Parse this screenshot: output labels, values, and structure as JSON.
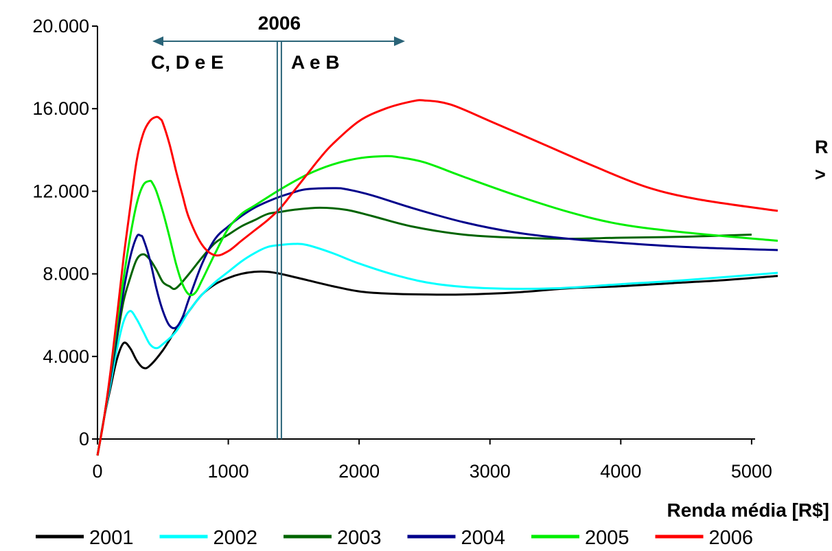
{
  "chart_data": {
    "type": "line",
    "title": "",
    "xlabel": "Renda média [R$]",
    "ylabel": "",
    "xlim": [
      0,
      5200
    ],
    "ylim": [
      0,
      20000
    ],
    "x_ticks": [
      "0",
      "1000",
      "2000",
      "3000",
      "4000",
      "5000"
    ],
    "y_ticks": [
      "0",
      "4.000",
      "8.000",
      "12.000",
      "16.000",
      "20.000"
    ],
    "grid": false,
    "legend_position": "bottom",
    "annotations": {
      "year": "2006",
      "left_label": "C, D e E",
      "right_label": "A e  B",
      "threshold_x": 1390,
      "cut_right_edge_label_1": "R",
      "cut_right_edge_label_2": ">"
    },
    "series": [
      {
        "name": "2001",
        "color": "#000000",
        "x": [
          0,
          50,
          100,
          150,
          200,
          250,
          300,
          350,
          400,
          500,
          600,
          700,
          800,
          900,
          1000,
          1100,
          1200,
          1300,
          1400,
          1600,
          1800,
          2000,
          2200,
          2500,
          2800,
          3200,
          3600,
          4000,
          4400,
          4800,
          5200
        ],
        "y": [
          -800,
          1000,
          2500,
          3900,
          4650,
          4400,
          3800,
          3450,
          3550,
          4300,
          5300,
          6200,
          7000,
          7500,
          7800,
          8000,
          8100,
          8100,
          8000,
          7700,
          7400,
          7150,
          7050,
          7000,
          7000,
          7100,
          7300,
          7400,
          7550,
          7700,
          7900
        ]
      },
      {
        "name": "2002",
        "color": "#00FFFF",
        "x": [
          0,
          50,
          100,
          150,
          200,
          250,
          300,
          350,
          400,
          450,
          500,
          600,
          700,
          800,
          900,
          1000,
          1100,
          1200,
          1300,
          1400,
          1500,
          1600,
          1800,
          2000,
          2300,
          2600,
          3000,
          3500,
          4000,
          4500,
          5200
        ],
        "y": [
          -800,
          1000,
          2700,
          4400,
          5700,
          6200,
          5800,
          5200,
          4600,
          4400,
          4600,
          5200,
          6200,
          7000,
          7600,
          8100,
          8600,
          9000,
          9300,
          9400,
          9450,
          9400,
          9000,
          8500,
          7900,
          7500,
          7300,
          7300,
          7500,
          7700,
          8050
        ]
      },
      {
        "name": "2003",
        "color": "#006400",
        "x": [
          0,
          50,
          100,
          150,
          200,
          250,
          300,
          350,
          400,
          450,
          500,
          550,
          600,
          700,
          800,
          900,
          1000,
          1100,
          1200,
          1300,
          1400,
          1500,
          1700,
          1900,
          2100,
          2400,
          2800,
          3200,
          3600,
          4000,
          4500,
          5000
        ],
        "y": [
          -800,
          1000,
          3000,
          4900,
          6700,
          7800,
          8700,
          8950,
          8700,
          8200,
          7600,
          7400,
          7300,
          8000,
          8800,
          9500,
          9900,
          10300,
          10600,
          10900,
          11000,
          11100,
          11200,
          11100,
          10800,
          10300,
          9900,
          9750,
          9700,
          9750,
          9800,
          9900
        ]
      },
      {
        "name": "2004",
        "color": "#00008B",
        "x": [
          0,
          50,
          100,
          150,
          200,
          250,
          300,
          330,
          350,
          400,
          450,
          500,
          550,
          600,
          650,
          700,
          800,
          900,
          1000,
          1100,
          1200,
          1300,
          1400,
          1500,
          1600,
          1800,
          1900,
          2100,
          2400,
          2800,
          3200,
          3600,
          4000,
          4500,
          5200
        ],
        "y": [
          -800,
          1000,
          3000,
          5200,
          7200,
          8800,
          9800,
          9850,
          9700,
          8700,
          7300,
          6200,
          5500,
          5400,
          5900,
          6800,
          8500,
          9700,
          10300,
          10800,
          11200,
          11500,
          11750,
          11950,
          12100,
          12150,
          12100,
          11800,
          11200,
          10500,
          10000,
          9700,
          9500,
          9300,
          9150
        ]
      },
      {
        "name": "2005",
        "color": "#00EE00",
        "x": [
          0,
          50,
          100,
          150,
          200,
          250,
          300,
          350,
          400,
          420,
          450,
          500,
          550,
          600,
          650,
          700,
          750,
          800,
          900,
          1000,
          1100,
          1200,
          1400,
          1600,
          1800,
          2000,
          2200,
          2300,
          2500,
          2800,
          3200,
          3600,
          4000,
          4500,
          5200
        ],
        "y": [
          -800,
          1000,
          3200,
          5600,
          7800,
          9800,
          11400,
          12300,
          12500,
          12400,
          12000,
          11000,
          9800,
          8500,
          7500,
          7000,
          7100,
          7700,
          9000,
          10200,
          10900,
          11300,
          12100,
          12800,
          13300,
          13600,
          13700,
          13650,
          13400,
          12700,
          11800,
          11000,
          10400,
          10000,
          9600
        ]
      },
      {
        "name": "2006",
        "color": "#FF0000",
        "x": [
          0,
          50,
          100,
          150,
          200,
          250,
          300,
          350,
          400,
          450,
          480,
          500,
          550,
          600,
          650,
          700,
          800,
          900,
          1000,
          1100,
          1200,
          1300,
          1400,
          1500,
          1600,
          1700,
          1800,
          2000,
          2200,
          2400,
          2500,
          2700,
          3000,
          3400,
          3800,
          4200,
          4600,
          5200
        ],
        "y": [
          -800,
          1000,
          3300,
          6000,
          8800,
          11200,
          13500,
          14800,
          15400,
          15600,
          15500,
          15300,
          14300,
          13000,
          11800,
          10700,
          9400,
          8900,
          9100,
          9600,
          10100,
          10600,
          11200,
          12000,
          12800,
          13600,
          14300,
          15400,
          16000,
          16350,
          16400,
          16200,
          15400,
          14300,
          13200,
          12200,
          11600,
          11050
        ]
      }
    ]
  }
}
